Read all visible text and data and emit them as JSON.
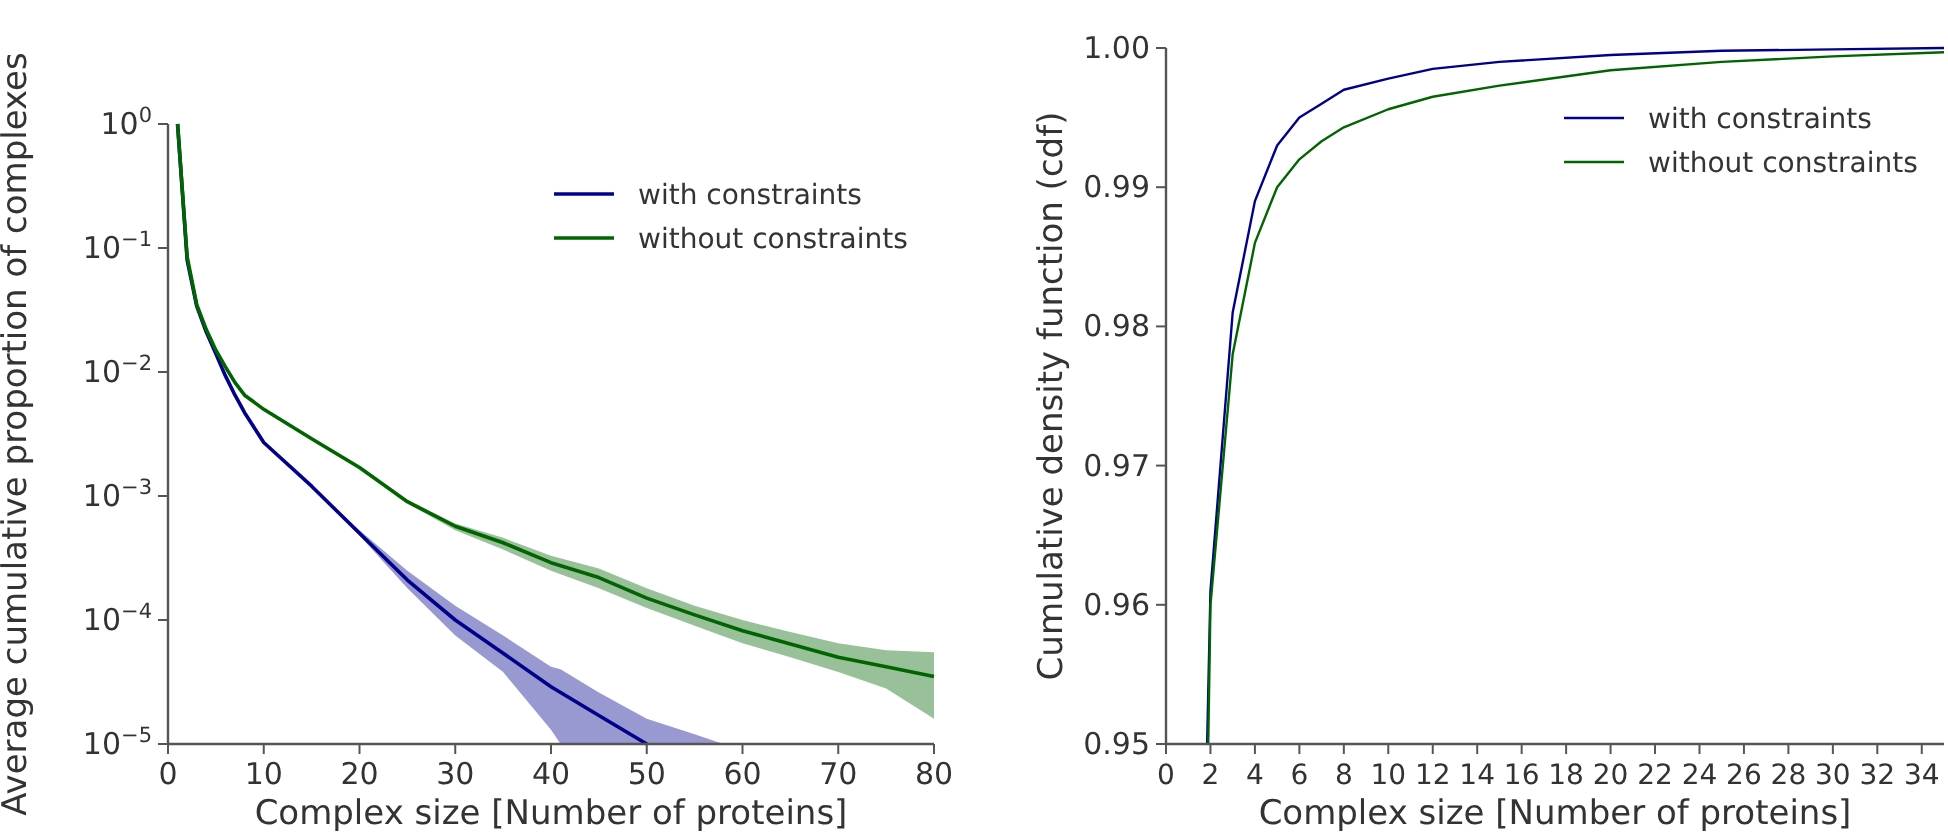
{
  "chart_data": [
    {
      "type": "line",
      "xlabel": "Complex size [Number of proteins]",
      "ylabel": "Average cumulative proportion of complexes",
      "log": "y",
      "xlim": [
        0,
        80
      ],
      "xticks": [
        0,
        10,
        20,
        30,
        40,
        50,
        60,
        70,
        80
      ],
      "ylim": [
        1e-05,
        1
      ],
      "yticks": [
        {
          "value": 1,
          "label": "10$^{0}$"
        },
        {
          "value": 0.1,
          "label": "10$^{−1}$"
        },
        {
          "value": 0.01,
          "label": "10$^{−2}$"
        },
        {
          "value": 0.001,
          "label": "10$^{−3}$"
        },
        {
          "value": 0.0001,
          "label": "10$^{−4}$"
        },
        {
          "value": 1e-05,
          "label": "10$^{−5}$"
        }
      ],
      "legend": "top right",
      "grid": false,
      "series": [
        {
          "name": "with constraints",
          "color": "#00008b",
          "x": [
            1,
            2,
            3,
            4,
            5,
            6,
            7,
            8,
            10,
            15,
            20,
            25,
            30,
            35,
            40,
            41,
            45,
            50,
            55,
            58
          ],
          "values": [
            1,
            0.08,
            0.034,
            0.021,
            0.014,
            0.0093,
            0.0065,
            0.0047,
            0.0027,
            0.0012,
            0.0005,
            0.00021,
            0.0001,
            5.4e-05,
            2.9e-05,
            2.6e-05,
            1.7e-05,
            1e-05,
            null,
            null
          ],
          "lower": [
            1,
            0.08,
            0.034,
            0.021,
            0.014,
            0.0093,
            0.0065,
            0.0047,
            0.0027,
            0.0012,
            0.00048,
            0.00018,
            7.5e-05,
            3.8e-05,
            1.3e-05,
            1e-05,
            1e-05,
            1e-05,
            1e-05,
            1e-05
          ],
          "upper": [
            1,
            0.08,
            0.034,
            0.021,
            0.014,
            0.0093,
            0.0065,
            0.0047,
            0.0027,
            0.0012,
            0.00053,
            0.00025,
            0.00013,
            7.5e-05,
            4.2e-05,
            4e-05,
            2.6e-05,
            1.6e-05,
            1.2e-05,
            1e-05
          ]
        },
        {
          "name": "without constraints",
          "color": "#006400",
          "x": [
            1,
            2,
            3,
            4,
            5,
            6,
            7,
            8,
            10,
            15,
            20,
            25,
            30,
            35,
            40,
            45,
            50,
            55,
            60,
            65,
            70,
            75,
            80
          ],
          "values": [
            1,
            0.085,
            0.035,
            0.022,
            0.015,
            0.011,
            0.0082,
            0.0065,
            0.005,
            0.0029,
            0.0017,
            0.0009,
            0.00057,
            0.00042,
            0.00029,
            0.00022,
            0.00015,
            0.00011,
            8.2e-05,
            6.4e-05,
            5e-05,
            4.2e-05,
            3.5e-05
          ],
          "lower": [
            1,
            0.085,
            0.035,
            0.022,
            0.015,
            0.011,
            0.0082,
            0.0065,
            0.005,
            0.0029,
            0.0017,
            0.00087,
            0.00053,
            0.00037,
            0.00025,
            0.00018,
            0.000125,
            9e-05,
            6.5e-05,
            5e-05,
            3.8e-05,
            2.8e-05,
            1.6e-05
          ],
          "upper": [
            1,
            0.085,
            0.035,
            0.022,
            0.015,
            0.011,
            0.0082,
            0.0065,
            0.005,
            0.0029,
            0.0017,
            0.00093,
            0.0006,
            0.00046,
            0.00033,
            0.00026,
            0.00018,
            0.00013,
            0.0001,
            8e-05,
            6.5e-05,
            5.7e-05,
            5.5e-05
          ]
        }
      ]
    },
    {
      "type": "line",
      "xlabel": "Complex size [Number of proteins]",
      "ylabel": "Cumulative density function (cdf)",
      "xlim": [
        0,
        35
      ],
      "xticks": [
        0,
        2,
        4,
        6,
        8,
        10,
        12,
        14,
        16,
        18,
        20,
        22,
        24,
        26,
        28,
        30,
        32,
        34
      ],
      "ylim": [
        0.95,
        1
      ],
      "yticks": [
        {
          "value": 0.95,
          "label": "0.95"
        },
        {
          "value": 0.96,
          "label": "0.96"
        },
        {
          "value": 0.97,
          "label": "0.97"
        },
        {
          "value": 0.98,
          "label": "0.98"
        },
        {
          "value": 0.99,
          "label": "0.99"
        },
        {
          "value": 1,
          "label": "1.00"
        }
      ],
      "legend": "top right",
      "grid": false,
      "series": [
        {
          "name": "with constraints",
          "color": "#00008b",
          "x": [
            1.85,
            2,
            3,
            4,
            5,
            6,
            7,
            8,
            10,
            12,
            15,
            20,
            25,
            30,
            35
          ],
          "values": [
            0.95,
            0.961,
            0.981,
            0.989,
            0.993,
            0.995,
            0.996,
            0.997,
            0.9978,
            0.9985,
            0.999,
            0.9995,
            0.9998,
            0.9999,
            1
          ]
        },
        {
          "name": "without constraints",
          "color": "#006400",
          "x": [
            1.9,
            2,
            3,
            4,
            5,
            6,
            7,
            8,
            10,
            12,
            15,
            20,
            25,
            30,
            35
          ],
          "values": [
            0.95,
            0.96,
            0.978,
            0.986,
            0.99,
            0.992,
            0.9933,
            0.9943,
            0.9956,
            0.9965,
            0.9973,
            0.9984,
            0.999,
            0.9994,
            0.9997
          ]
        }
      ]
    }
  ]
}
